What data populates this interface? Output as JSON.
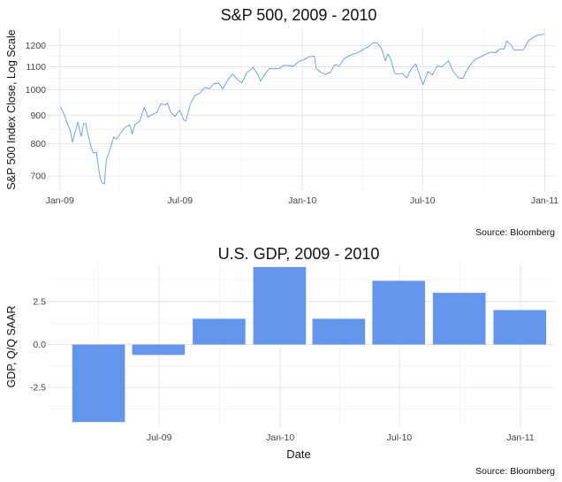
{
  "chart_data": [
    {
      "type": "line",
      "title": "S&P 500, 2009 - 2010",
      "xlabel": "",
      "ylabel": "S&P 500 Index Close, Log Scale",
      "caption": "Source: Bloomberg",
      "y_scale": "log",
      "ylim": [
        660,
        1290
      ],
      "yticks": [
        700,
        800,
        900,
        1000,
        1100,
        1200
      ],
      "xticks": [
        {
          "date": "2009-01-01",
          "label": "Jan-09"
        },
        {
          "date": "2009-07-01",
          "label": "Jul-09"
        },
        {
          "date": "2010-01-01",
          "label": "Jan-10"
        },
        {
          "date": "2010-07-01",
          "label": "Jul-10"
        },
        {
          "date": "2011-01-01",
          "label": "Jan-11"
        }
      ],
      "xlim": [
        "2008-12-15",
        "2011-01-15"
      ],
      "grid": true,
      "color": "#6495ED",
      "series": [
        {
          "x": [
            "2009-01-02",
            "2009-01-07",
            "2009-01-12",
            "2009-01-16",
            "2009-01-20",
            "2009-01-23",
            "2009-01-28",
            "2009-02-02",
            "2009-02-06",
            "2009-02-09",
            "2009-02-12",
            "2009-02-17",
            "2009-02-20",
            "2009-02-25",
            "2009-03-02",
            "2009-03-05",
            "2009-03-09",
            "2009-03-12",
            "2009-03-17",
            "2009-03-23",
            "2009-03-27",
            "2009-04-02",
            "2009-04-09",
            "2009-04-16",
            "2009-04-20",
            "2009-04-24",
            "2009-05-01",
            "2009-05-08",
            "2009-05-14",
            "2009-05-20",
            "2009-05-27",
            "2009-06-02",
            "2009-06-09",
            "2009-06-12",
            "2009-06-17",
            "2009-06-23",
            "2009-06-30",
            "2009-07-07",
            "2009-07-10",
            "2009-07-16",
            "2009-07-23",
            "2009-07-31",
            "2009-08-07",
            "2009-08-14",
            "2009-08-21",
            "2009-08-28",
            "2009-09-03",
            "2009-09-11",
            "2009-09-18",
            "2009-09-25",
            "2009-10-02",
            "2009-10-09",
            "2009-10-19",
            "2009-10-26",
            "2009-10-30",
            "2009-11-06",
            "2009-11-13",
            "2009-11-20",
            "2009-11-27",
            "2009-12-04",
            "2009-12-11",
            "2009-12-18",
            "2009-12-28",
            "2010-01-04",
            "2010-01-11",
            "2010-01-19",
            "2010-01-22",
            "2010-01-29",
            "2010-02-05",
            "2010-02-12",
            "2010-02-19",
            "2010-02-26",
            "2010-03-05",
            "2010-03-12",
            "2010-03-19",
            "2010-03-26",
            "2010-04-05",
            "2010-04-12",
            "2010-04-15",
            "2010-04-23",
            "2010-04-30",
            "2010-05-06",
            "2010-05-10",
            "2010-05-14",
            "2010-05-20",
            "2010-05-25",
            "2010-06-01",
            "2010-06-07",
            "2010-06-14",
            "2010-06-21",
            "2010-06-29",
            "2010-07-02",
            "2010-07-09",
            "2010-07-16",
            "2010-07-23",
            "2010-07-30",
            "2010-08-09",
            "2010-08-16",
            "2010-08-24",
            "2010-08-31",
            "2010-09-07",
            "2010-09-14",
            "2010-09-21",
            "2010-09-28",
            "2010-10-05",
            "2010-10-12",
            "2010-10-19",
            "2010-10-26",
            "2010-11-01",
            "2010-11-05",
            "2010-11-12",
            "2010-11-16",
            "2010-11-23",
            "2010-11-30",
            "2010-12-07",
            "2010-12-14",
            "2010-12-21",
            "2010-12-27",
            "2010-12-31"
          ],
          "y": [
            931,
            906,
            870,
            850,
            805,
            832,
            874,
            825,
            869,
            870,
            835,
            789,
            770,
            772,
            700,
            682,
            677,
            750,
            778,
            823,
            815,
            834,
            856,
            865,
            833,
            866,
            877,
            929,
            893,
            903,
            910,
            944,
            940,
            946,
            911,
            895,
            919,
            881,
            880,
            940,
            976,
            987,
            1010,
            1005,
            1026,
            1028,
            1004,
            1042,
            1068,
            1044,
            1029,
            1071,
            1097,
            1066,
            1036,
            1069,
            1093,
            1091,
            1092,
            1106,
            1106,
            1102,
            1127,
            1133,
            1146,
            1150,
            1092,
            1074,
            1066,
            1075,
            1109,
            1105,
            1138,
            1150,
            1160,
            1166,
            1187,
            1197,
            1211,
            1217,
            1187,
            1128,
            1160,
            1136,
            1071,
            1067,
            1070,
            1050,
            1090,
            1113,
            1041,
            1022,
            1078,
            1064,
            1103,
            1101,
            1127,
            1080,
            1051,
            1049,
            1091,
            1121,
            1139,
            1148,
            1160,
            1169,
            1166,
            1185,
            1184,
            1225,
            1200,
            1178,
            1180,
            1180,
            1224,
            1240,
            1254,
            1257,
            1258
          ]
        }
      ]
    },
    {
      "type": "bar",
      "title": "U.S. GDP, 2009 - 2010",
      "xlabel": "Date",
      "ylabel": "GDP, Q/Q SAAR",
      "caption": "Source: Bloomberg",
      "ylim": [
        -4.8,
        4.6
      ],
      "yticks": [
        {
          "value": -2.5,
          "label": "-2.5"
        },
        {
          "value": 0.0,
          "label": "0.0"
        },
        {
          "value": 2.5,
          "label": "2.5"
        }
      ],
      "xticks": [
        {
          "date": "2009-07-01",
          "label": "Jul-09"
        },
        {
          "date": "2010-01-01",
          "label": "Jan-10"
        },
        {
          "date": "2010-07-01",
          "label": "Jul-10"
        },
        {
          "date": "2011-01-01",
          "label": "Jan-11"
        }
      ],
      "xlim": [
        "2009-01-14",
        "2011-02-21"
      ],
      "grid": true,
      "color": "#6495ED",
      "series": [
        {
          "x": [
            "2009-03-31",
            "2009-06-30",
            "2009-09-30",
            "2009-12-31",
            "2010-03-31",
            "2010-06-30",
            "2010-09-30",
            "2010-12-31"
          ],
          "values": [
            -4.5,
            -0.6,
            1.5,
            4.5,
            1.5,
            3.7,
            3.0,
            2.0
          ]
        }
      ]
    }
  ]
}
